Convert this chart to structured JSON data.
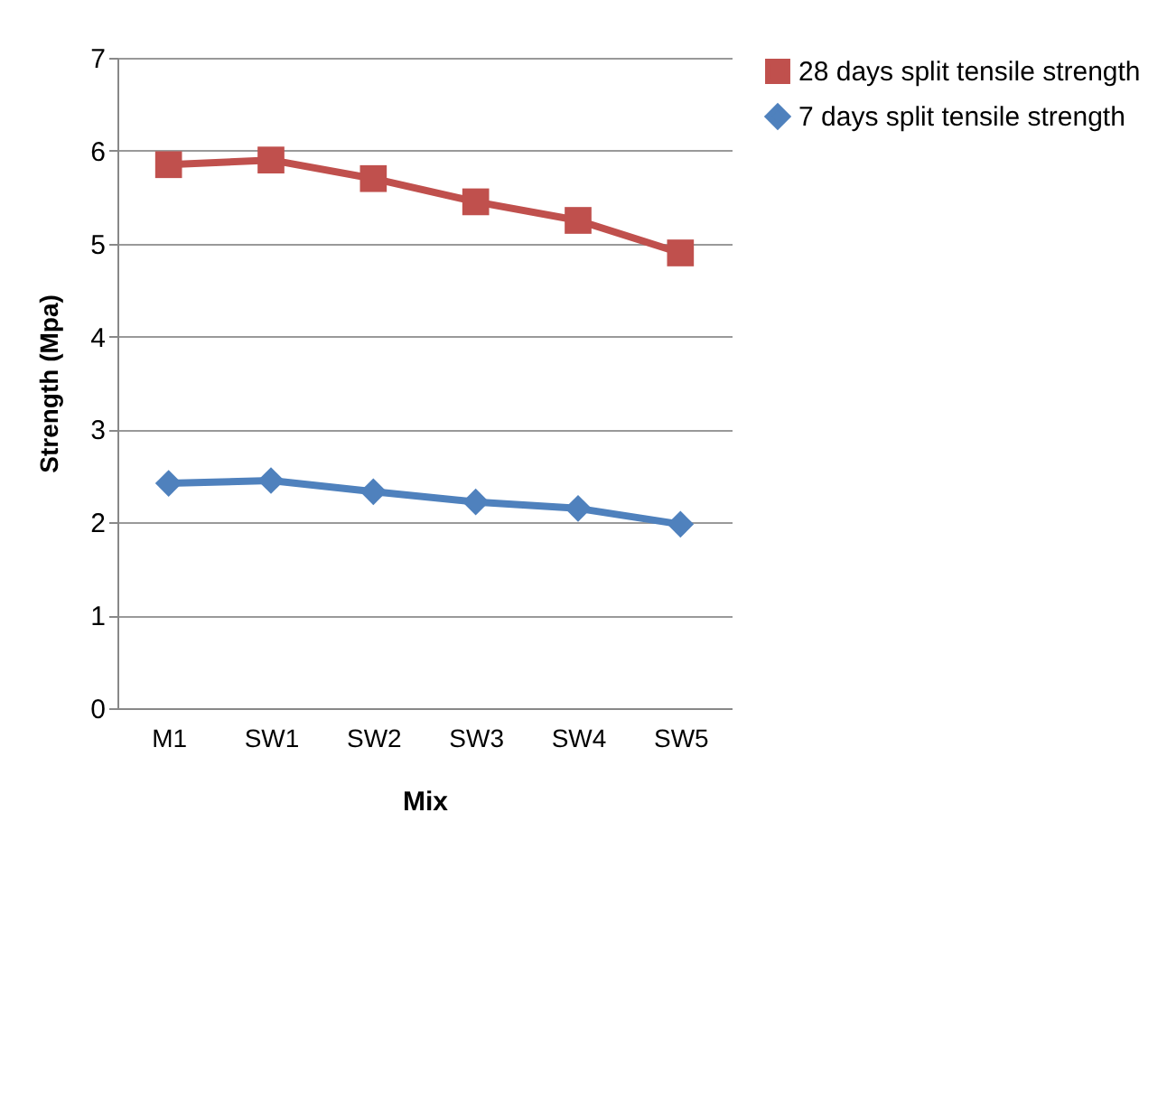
{
  "chart_data": {
    "type": "line",
    "xlabel": "Mix",
    "ylabel": "Strength (Mpa)",
    "categories": [
      "M1",
      "SW1",
      "SW2",
      "SW3",
      "SW4",
      "SW5"
    ],
    "series": [
      {
        "name": "28 days split tensile strength",
        "color": "#c0504d",
        "marker": "square",
        "values": [
          5.85,
          5.9,
          5.7,
          5.45,
          5.25,
          4.9
        ]
      },
      {
        "name": "7 days split tensile strength",
        "color": "#4f81bd",
        "marker": "diamond",
        "values": [
          2.42,
          2.45,
          2.33,
          2.22,
          2.15,
          1.98
        ]
      }
    ],
    "ylim": [
      0,
      7
    ],
    "yticks": [
      0,
      1,
      2,
      3,
      4,
      5,
      6,
      7
    ],
    "grid": "y",
    "legend": "right"
  }
}
